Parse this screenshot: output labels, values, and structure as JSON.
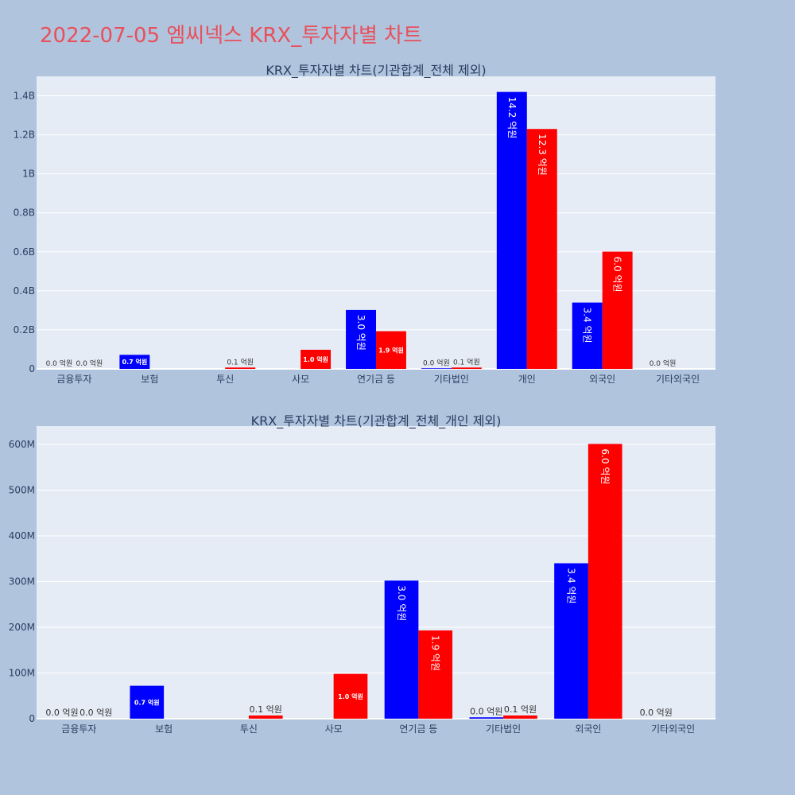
{
  "page_title": "2022-07-05 엠씨넥스 KRX_투자자별 차트",
  "colors": {
    "page_bg": "#b0c4de",
    "plot_bg": "#e5ecf6",
    "grid": "#ffffff",
    "buy": "#0000ff",
    "sell": "#ff0000",
    "title": "#e8505b",
    "text": "#2a3f5f"
  },
  "chart_data": [
    {
      "type": "bar",
      "title": "KRX_투자자별 차트(기관합계_전체 제외)",
      "categories": [
        "금융투자",
        "보험",
        "투신",
        "사모",
        "연기금 등",
        "기타법인",
        "개인",
        "외국인",
        "기타외국인"
      ],
      "series": [
        {
          "color": "#0000ff",
          "values": [
            0.0,
            72000000,
            0,
            0,
            302000000,
            3000000,
            1420000000,
            340000000,
            0.0
          ],
          "labels": [
            "0.0 억원",
            "0.7 억원",
            "",
            "",
            "3.0 억원",
            "0.0 억원",
            "14.2 억원",
            "3.4 억원",
            "0.0 억원"
          ]
        },
        {
          "color": "#ff0000",
          "values": [
            0.0,
            0,
            7000000,
            98000000,
            193000000,
            7000000,
            1230000000,
            601000000,
            0
          ],
          "labels": [
            "0.0 억원",
            "",
            "0.1 억원",
            "1.0 억원",
            "1.9 억원",
            "0.1 억원",
            "12.3 억원",
            "6.0 억원",
            ""
          ]
        }
      ],
      "ylim": [
        0,
        1500000000
      ],
      "ytick_values": [
        0,
        200000000,
        400000000,
        600000000,
        800000000,
        1000000000,
        1200000000,
        1400000000
      ],
      "ytick_labels": [
        "0",
        "0.2B",
        "0.4B",
        "0.6B",
        "0.8B",
        "1B",
        "1.2B",
        "1.4B"
      ],
      "grid": true
    },
    {
      "type": "bar",
      "title": "KRX_투자자별 차트(기관합계_전체_개인 제외)",
      "categories": [
        "금융투자",
        "보험",
        "투신",
        "사모",
        "연기금 등",
        "기타법인",
        "외국인",
        "기타외국인"
      ],
      "series": [
        {
          "color": "#0000ff",
          "values": [
            0.0,
            72000000,
            0,
            0,
            302000000,
            3000000,
            340000000,
            0.0
          ],
          "labels": [
            "0.0 억원",
            "0.7 억원",
            "",
            "",
            "3.0 억원",
            "0.0 억원",
            "3.4 억원",
            "0.0 억원"
          ]
        },
        {
          "color": "#ff0000",
          "values": [
            0.0,
            0,
            7000000,
            98000000,
            193000000,
            7000000,
            601000000,
            0
          ],
          "labels": [
            "0.0 억원",
            "",
            "0.1 억원",
            "1.0 억원",
            "1.9 억원",
            "0.1 억원",
            "6.0 억원",
            ""
          ]
        }
      ],
      "ylim": [
        0,
        640000000
      ],
      "ytick_values": [
        0,
        100000000,
        200000000,
        300000000,
        400000000,
        500000000,
        600000000
      ],
      "ytick_labels": [
        "0",
        "100M",
        "200M",
        "300M",
        "400M",
        "500M",
        "600M"
      ],
      "grid": true
    }
  ]
}
